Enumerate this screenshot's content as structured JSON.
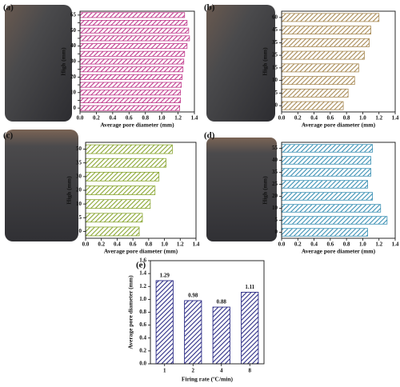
{
  "chart_data": [
    {
      "type": "barh",
      "label": "(a)",
      "xlabel": "Average pore diameter (mm)",
      "ylabel": "High (mm)",
      "color": "#c03a8c",
      "categories": [
        "65",
        null,
        "50",
        null,
        "40",
        null,
        "30",
        null,
        "20",
        null,
        "10",
        null,
        "0"
      ],
      "values": [
        1.28,
        1.31,
        1.33,
        1.34,
        1.31,
        1.28,
        1.27,
        1.26,
        1.25,
        1.24,
        1.23,
        1.23,
        1.22
      ],
      "xlim": [
        0,
        1.4
      ],
      "xticks": [
        {
          "value": 0,
          "label": "0.0"
        },
        0.2,
        0.4,
        0.6,
        0.8,
        {
          "value": 1,
          "label": "1.0"
        },
        1.2,
        1.4
      ]
    },
    {
      "type": "barh",
      "label": "(b)",
      "xlabel": "Average pore diameter (mm)",
      "ylabel": "High (mm)",
      "color": "#a88a55",
      "categories": [
        "60",
        "45",
        "35",
        "25",
        "15",
        "10",
        "5",
        "0"
      ],
      "values": [
        1.2,
        1.1,
        1.08,
        1.02,
        0.95,
        0.9,
        0.82,
        0.76
      ],
      "xlim": [
        0,
        1.4
      ],
      "xticks": [
        {
          "value": 0,
          "label": "0.0"
        },
        0.2,
        0.4,
        0.6,
        0.8,
        {
          "value": 1,
          "label": "1.0"
        },
        1.2,
        1.4
      ]
    },
    {
      "type": "barh",
      "label": "(c)",
      "xlabel": "Average pore diameter (mm)",
      "ylabel": "High (mm)",
      "color": "#8aa632",
      "categories": [
        "50",
        "35",
        "30",
        "20",
        "10",
        "5",
        "0"
      ],
      "values": [
        1.1,
        1.02,
        0.93,
        0.88,
        0.82,
        0.72,
        0.68
      ],
      "xlim": [
        0,
        1.4
      ],
      "xticks": [
        {
          "value": 0,
          "label": "0.0"
        },
        0.2,
        0.4,
        0.6,
        0.8,
        {
          "value": 1,
          "label": "1.0"
        },
        1.2,
        1.4
      ]
    },
    {
      "type": "barh",
      "label": "(d)",
      "xlabel": "Average pore diameter (mm)",
      "ylabel": "High (mm)",
      "color": "#3a90b4",
      "categories": [
        "55",
        "40",
        "35",
        "25",
        "20",
        "10",
        "5",
        "0"
      ],
      "values": [
        1.12,
        1.1,
        1.1,
        1.06,
        1.12,
        1.22,
        1.3,
        1.06
      ],
      "xlim": [
        0,
        1.4
      ],
      "xticks": [
        {
          "value": 0,
          "label": "0.0"
        },
        0.2,
        0.4,
        0.6,
        0.8,
        {
          "value": 1,
          "label": "1.0"
        },
        1.2,
        1.4
      ]
    },
    {
      "type": "bar",
      "label": "(e)",
      "xlabel": "Firing rate (ºC/min)",
      "ylabel": "Average pore diameter (mm)",
      "color": "#2c2c86",
      "categories": [
        "1",
        "2",
        "4",
        "8"
      ],
      "values": [
        1.29,
        0.98,
        0.88,
        1.11
      ],
      "ylim": [
        0,
        1.6
      ],
      "yticks": [
        {
          "value": 0,
          "label": "0.0"
        },
        0.2,
        0.4,
        0.6,
        0.8,
        {
          "value": 1,
          "label": "1.0"
        },
        1.2,
        1.4,
        1.6
      ]
    }
  ]
}
